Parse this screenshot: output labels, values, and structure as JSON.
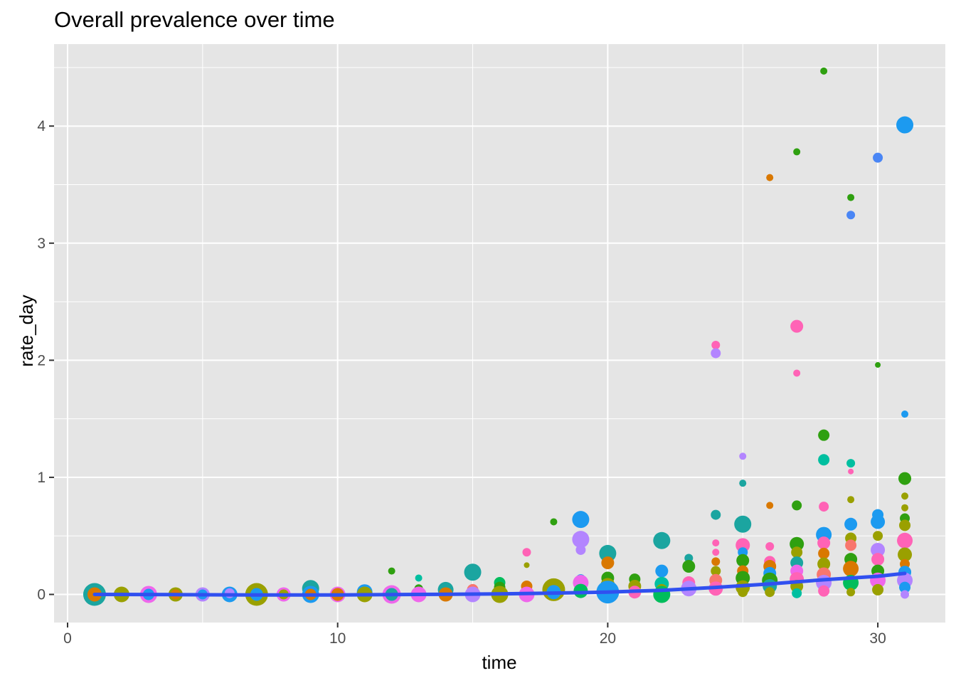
{
  "chart_data": {
    "type": "scatter",
    "title": "Overall prevalence over time",
    "xlabel": "time",
    "ylabel": "rate_day",
    "xlim": [
      -0.5,
      32.5
    ],
    "ylim": [
      -0.24,
      4.7
    ],
    "x_ticks": [
      0,
      10,
      20,
      30
    ],
    "y_ticks": [
      0,
      1,
      2,
      3,
      4
    ],
    "x_tick_labels": [
      "0",
      "10",
      "20",
      "30"
    ],
    "y_tick_labels": [
      "0",
      "1",
      "2",
      "3",
      "4"
    ],
    "grid": true,
    "legend": "none",
    "colors": {
      "panel": "#e5e5e5",
      "grid_major": "#ffffff",
      "trend": "#3050f0"
    },
    "palette": [
      "#F8766D",
      "#DB8E00",
      "#AEA200",
      "#64B200",
      "#00BD5C",
      "#00C1A7",
      "#00BADE",
      "#00A6FF",
      "#B385FF",
      "#EF67EB",
      "#FF63B6",
      "#2fa010",
      "#9aa000",
      "#d97800",
      "#1ba5a0",
      "#1c9af0"
    ],
    "points": [
      {
        "x": 1,
        "y": 0.0,
        "size": 16,
        "color": "#1ba5a0"
      },
      {
        "x": 1,
        "y": 0.0,
        "size": 10,
        "color": "#d97800"
      },
      {
        "x": 2,
        "y": 0.0,
        "size": 11,
        "color": "#9aa000"
      },
      {
        "x": 3,
        "y": 0.0,
        "size": 12,
        "color": "#EF67EB"
      },
      {
        "x": 3,
        "y": 0.0,
        "size": 8,
        "color": "#1c9af0"
      },
      {
        "x": 4,
        "y": 0.0,
        "size": 10,
        "color": "#9aa000"
      },
      {
        "x": 4,
        "y": 0.0,
        "size": 7,
        "color": "#d97800"
      },
      {
        "x": 5,
        "y": 0.0,
        "size": 10,
        "color": "#B385FF"
      },
      {
        "x": 5,
        "y": 0.0,
        "size": 7,
        "color": "#1c9af0"
      },
      {
        "x": 6,
        "y": 0.0,
        "size": 11,
        "color": "#1c9af0"
      },
      {
        "x": 6,
        "y": 0.01,
        "size": 7,
        "color": "#B385FF"
      },
      {
        "x": 7,
        "y": 0.0,
        "size": 16,
        "color": "#9aa000"
      },
      {
        "x": 7,
        "y": 0.0,
        "size": 9,
        "color": "#1c9af0"
      },
      {
        "x": 8,
        "y": 0.0,
        "size": 10,
        "color": "#EF67EB"
      },
      {
        "x": 8,
        "y": 0.0,
        "size": 7,
        "color": "#9aa000"
      },
      {
        "x": 9,
        "y": 0.05,
        "size": 12,
        "color": "#1ba5a0"
      },
      {
        "x": 9,
        "y": 0.0,
        "size": 12,
        "color": "#1c9af0"
      },
      {
        "x": 9,
        "y": 0.0,
        "size": 8,
        "color": "#d97800"
      },
      {
        "x": 10,
        "y": 0.0,
        "size": 11,
        "color": "#EF67EB"
      },
      {
        "x": 10,
        "y": 0.0,
        "size": 9,
        "color": "#d97800"
      },
      {
        "x": 11,
        "y": 0.02,
        "size": 11,
        "color": "#1c9af0"
      },
      {
        "x": 11,
        "y": 0.0,
        "size": 11,
        "color": "#9aa000"
      },
      {
        "x": 12,
        "y": 0.2,
        "size": 5,
        "color": "#2fa010"
      },
      {
        "x": 12,
        "y": 0.0,
        "size": 13,
        "color": "#EF67EB"
      },
      {
        "x": 12,
        "y": 0.0,
        "size": 9,
        "color": "#1ba5a0"
      },
      {
        "x": 13,
        "y": 0.14,
        "size": 5,
        "color": "#00BFA0"
      },
      {
        "x": 13,
        "y": 0.05,
        "size": 6,
        "color": "#2fa010"
      },
      {
        "x": 13,
        "y": 0.0,
        "size": 11,
        "color": "#EF67EB"
      },
      {
        "x": 14,
        "y": 0.04,
        "size": 11,
        "color": "#1ba5a0"
      },
      {
        "x": 14,
        "y": 0.0,
        "size": 10,
        "color": "#d97800"
      },
      {
        "x": 15,
        "y": 0.19,
        "size": 12,
        "color": "#1ba5a0"
      },
      {
        "x": 15,
        "y": 0.04,
        "size": 8,
        "color": "#F8766D"
      },
      {
        "x": 15,
        "y": 0.0,
        "size": 11,
        "color": "#B385FF"
      },
      {
        "x": 16,
        "y": 0.1,
        "size": 8,
        "color": "#00BD5C"
      },
      {
        "x": 16,
        "y": 0.06,
        "size": 8,
        "color": "#2fa010"
      },
      {
        "x": 16,
        "y": 0.0,
        "size": 12,
        "color": "#9aa000"
      },
      {
        "x": 17,
        "y": 0.36,
        "size": 6,
        "color": "#FF63B6"
      },
      {
        "x": 17,
        "y": 0.25,
        "size": 4,
        "color": "#9aa000"
      },
      {
        "x": 17,
        "y": 0.07,
        "size": 8,
        "color": "#d97800"
      },
      {
        "x": 17,
        "y": 0.0,
        "size": 11,
        "color": "#EF67EB"
      },
      {
        "x": 18,
        "y": 0.62,
        "size": 5,
        "color": "#2fa010"
      },
      {
        "x": 18,
        "y": 0.04,
        "size": 16,
        "color": "#9aa000"
      },
      {
        "x": 18,
        "y": 0.02,
        "size": 10,
        "color": "#1c9af0"
      },
      {
        "x": 19,
        "y": 0.64,
        "size": 12,
        "color": "#1c9af0"
      },
      {
        "x": 19,
        "y": 0.47,
        "size": 12,
        "color": "#B385FF"
      },
      {
        "x": 19,
        "y": 0.38,
        "size": 7,
        "color": "#B385FF"
      },
      {
        "x": 19,
        "y": 0.13,
        "size": 7,
        "color": "#1c9af0"
      },
      {
        "x": 19,
        "y": 0.1,
        "size": 11,
        "color": "#EF67EB"
      },
      {
        "x": 19,
        "y": 0.03,
        "size": 10,
        "color": "#00BD5C"
      },
      {
        "x": 20,
        "y": 0.35,
        "size": 12,
        "color": "#1ba5a0"
      },
      {
        "x": 20,
        "y": 0.27,
        "size": 9,
        "color": "#d97800"
      },
      {
        "x": 20,
        "y": 0.14,
        "size": 9,
        "color": "#2fa010"
      },
      {
        "x": 20,
        "y": 0.08,
        "size": 10,
        "color": "#9aa000"
      },
      {
        "x": 20,
        "y": 0.03,
        "size": 11,
        "color": "#EF67EB"
      },
      {
        "x": 20,
        "y": 0.02,
        "size": 16,
        "color": "#1c9af0"
      },
      {
        "x": 21,
        "y": 0.13,
        "size": 8,
        "color": "#2fa010"
      },
      {
        "x": 21,
        "y": 0.07,
        "size": 9,
        "color": "#9aa000"
      },
      {
        "x": 21,
        "y": 0.02,
        "size": 9,
        "color": "#FF63B6"
      },
      {
        "x": 22,
        "y": 0.46,
        "size": 12,
        "color": "#1ba5a0"
      },
      {
        "x": 22,
        "y": 0.2,
        "size": 9,
        "color": "#1c9af0"
      },
      {
        "x": 22,
        "y": 0.09,
        "size": 10,
        "color": "#00BFA0"
      },
      {
        "x": 22,
        "y": 0.04,
        "size": 8,
        "color": "#9aa000"
      },
      {
        "x": 22,
        "y": 0.0,
        "size": 12,
        "color": "#00BD5C"
      },
      {
        "x": 23,
        "y": 0.31,
        "size": 6,
        "color": "#1ba5a0"
      },
      {
        "x": 23,
        "y": 0.24,
        "size": 9,
        "color": "#2fa010"
      },
      {
        "x": 23,
        "y": 0.1,
        "size": 9,
        "color": "#FF63B6"
      },
      {
        "x": 23,
        "y": 0.05,
        "size": 11,
        "color": "#B385FF"
      },
      {
        "x": 24,
        "y": 2.13,
        "size": 6,
        "color": "#FF63B6"
      },
      {
        "x": 24,
        "y": 2.06,
        "size": 7,
        "color": "#B385FF"
      },
      {
        "x": 24,
        "y": 0.68,
        "size": 7,
        "color": "#1ba5a0"
      },
      {
        "x": 24,
        "y": 0.44,
        "size": 5,
        "color": "#FF63B6"
      },
      {
        "x": 24,
        "y": 0.36,
        "size": 5,
        "color": "#FF63B6"
      },
      {
        "x": 24,
        "y": 0.28,
        "size": 6,
        "color": "#d97800"
      },
      {
        "x": 24,
        "y": 0.2,
        "size": 7,
        "color": "#9aa000"
      },
      {
        "x": 24,
        "y": 0.12,
        "size": 9,
        "color": "#F8766D"
      },
      {
        "x": 24,
        "y": 0.05,
        "size": 10,
        "color": "#FF63B6"
      },
      {
        "x": 25,
        "y": 1.18,
        "size": 5,
        "color": "#B385FF"
      },
      {
        "x": 25,
        "y": 0.95,
        "size": 5,
        "color": "#1ba5a0"
      },
      {
        "x": 25,
        "y": 0.6,
        "size": 12,
        "color": "#1ba5a0"
      },
      {
        "x": 25,
        "y": 0.42,
        "size": 10,
        "color": "#FF63B6"
      },
      {
        "x": 25,
        "y": 0.36,
        "size": 7,
        "color": "#1c9af0"
      },
      {
        "x": 25,
        "y": 0.29,
        "size": 9,
        "color": "#2fa010"
      },
      {
        "x": 25,
        "y": 0.2,
        "size": 8,
        "color": "#d97800"
      },
      {
        "x": 25,
        "y": 0.14,
        "size": 10,
        "color": "#2fa010"
      },
      {
        "x": 25,
        "y": 0.06,
        "size": 10,
        "color": "#9aa000"
      },
      {
        "x": 25,
        "y": 0.02,
        "size": 7,
        "color": "#9aa000"
      },
      {
        "x": 26,
        "y": 3.56,
        "size": 5,
        "color": "#d97800"
      },
      {
        "x": 26,
        "y": 0.76,
        "size": 5,
        "color": "#d97800"
      },
      {
        "x": 26,
        "y": 0.41,
        "size": 6,
        "color": "#FF63B6"
      },
      {
        "x": 26,
        "y": 0.28,
        "size": 8,
        "color": "#FF63B6"
      },
      {
        "x": 26,
        "y": 0.24,
        "size": 9,
        "color": "#d97800"
      },
      {
        "x": 26,
        "y": 0.18,
        "size": 9,
        "color": "#1c9af0"
      },
      {
        "x": 26,
        "y": 0.12,
        "size": 11,
        "color": "#2fa010"
      },
      {
        "x": 26,
        "y": 0.07,
        "size": 10,
        "color": "#1ba5a0"
      },
      {
        "x": 26,
        "y": 0.02,
        "size": 7,
        "color": "#9aa000"
      },
      {
        "x": 27,
        "y": 3.78,
        "size": 5,
        "color": "#2fa010"
      },
      {
        "x": 27,
        "y": 2.29,
        "size": 9,
        "color": "#FF63B6"
      },
      {
        "x": 27,
        "y": 1.89,
        "size": 5,
        "color": "#FF63B6"
      },
      {
        "x": 27,
        "y": 0.76,
        "size": 7,
        "color": "#2fa010"
      },
      {
        "x": 27,
        "y": 0.43,
        "size": 10,
        "color": "#2fa010"
      },
      {
        "x": 27,
        "y": 0.36,
        "size": 8,
        "color": "#9aa000"
      },
      {
        "x": 27,
        "y": 0.27,
        "size": 9,
        "color": "#1ba5a0"
      },
      {
        "x": 27,
        "y": 0.2,
        "size": 9,
        "color": "#EF67EB"
      },
      {
        "x": 27,
        "y": 0.13,
        "size": 10,
        "color": "#FF63B6"
      },
      {
        "x": 27,
        "y": 0.07,
        "size": 9,
        "color": "#9aa000"
      },
      {
        "x": 27,
        "y": 0.01,
        "size": 7,
        "color": "#00BFA0"
      },
      {
        "x": 28,
        "y": 4.47,
        "size": 5,
        "color": "#2fa010"
      },
      {
        "x": 28,
        "y": 1.36,
        "size": 8,
        "color": "#2fa010"
      },
      {
        "x": 28,
        "y": 1.15,
        "size": 8,
        "color": "#00BFA0"
      },
      {
        "x": 28,
        "y": 0.75,
        "size": 7,
        "color": "#FF63B6"
      },
      {
        "x": 28,
        "y": 0.51,
        "size": 11,
        "color": "#1c9af0"
      },
      {
        "x": 28,
        "y": 0.44,
        "size": 9,
        "color": "#FF63B6"
      },
      {
        "x": 28,
        "y": 0.35,
        "size": 8,
        "color": "#d97800"
      },
      {
        "x": 28,
        "y": 0.26,
        "size": 9,
        "color": "#9aa000"
      },
      {
        "x": 28,
        "y": 0.17,
        "size": 10,
        "color": "#F8766D"
      },
      {
        "x": 28,
        "y": 0.1,
        "size": 11,
        "color": "#B385FF"
      },
      {
        "x": 28,
        "y": 0.03,
        "size": 8,
        "color": "#FF63B6"
      },
      {
        "x": 29,
        "y": 3.39,
        "size": 5,
        "color": "#2fa010"
      },
      {
        "x": 29,
        "y": 3.24,
        "size": 6,
        "color": "#4a86f5"
      },
      {
        "x": 29,
        "y": 1.12,
        "size": 6,
        "color": "#00BFA0"
      },
      {
        "x": 29,
        "y": 1.05,
        "size": 4,
        "color": "#FF63B6"
      },
      {
        "x": 29,
        "y": 0.81,
        "size": 5,
        "color": "#9aa000"
      },
      {
        "x": 29,
        "y": 0.6,
        "size": 9,
        "color": "#1c9af0"
      },
      {
        "x": 29,
        "y": 0.48,
        "size": 8,
        "color": "#9aa000"
      },
      {
        "x": 29,
        "y": 0.42,
        "size": 8,
        "color": "#F8766D"
      },
      {
        "x": 29,
        "y": 0.3,
        "size": 9,
        "color": "#2fa010"
      },
      {
        "x": 29,
        "y": 0.22,
        "size": 11,
        "color": "#d97800"
      },
      {
        "x": 29,
        "y": 0.1,
        "size": 11,
        "color": "#00BD5C"
      },
      {
        "x": 29,
        "y": 0.02,
        "size": 6,
        "color": "#9aa000"
      },
      {
        "x": 30,
        "y": 3.73,
        "size": 7,
        "color": "#4a86f5"
      },
      {
        "x": 30,
        "y": 1.96,
        "size": 4,
        "color": "#2fa010"
      },
      {
        "x": 30,
        "y": 0.68,
        "size": 8,
        "color": "#1c9af0"
      },
      {
        "x": 30,
        "y": 0.62,
        "size": 10,
        "color": "#1c9af0"
      },
      {
        "x": 30,
        "y": 0.5,
        "size": 7,
        "color": "#9aa000"
      },
      {
        "x": 30,
        "y": 0.38,
        "size": 10,
        "color": "#B385FF"
      },
      {
        "x": 30,
        "y": 0.3,
        "size": 9,
        "color": "#FF63B6"
      },
      {
        "x": 30,
        "y": 0.2,
        "size": 9,
        "color": "#2fa010"
      },
      {
        "x": 30,
        "y": 0.12,
        "size": 11,
        "color": "#EF67EB"
      },
      {
        "x": 30,
        "y": 0.04,
        "size": 8,
        "color": "#9aa000"
      },
      {
        "x": 31,
        "y": 4.01,
        "size": 12,
        "color": "#1c9af0"
      },
      {
        "x": 31,
        "y": 1.54,
        "size": 5,
        "color": "#1c9af0"
      },
      {
        "x": 31,
        "y": 0.99,
        "size": 9,
        "color": "#2fa010"
      },
      {
        "x": 31,
        "y": 0.84,
        "size": 5,
        "color": "#9aa000"
      },
      {
        "x": 31,
        "y": 0.74,
        "size": 5,
        "color": "#9aa000"
      },
      {
        "x": 31,
        "y": 0.65,
        "size": 7,
        "color": "#2fa010"
      },
      {
        "x": 31,
        "y": 0.59,
        "size": 8,
        "color": "#9aa000"
      },
      {
        "x": 31,
        "y": 0.46,
        "size": 11,
        "color": "#FF63B6"
      },
      {
        "x": 31,
        "y": 0.34,
        "size": 10,
        "color": "#9aa000"
      },
      {
        "x": 31,
        "y": 0.26,
        "size": 7,
        "color": "#d97800"
      },
      {
        "x": 31,
        "y": 0.19,
        "size": 9,
        "color": "#1c9af0"
      },
      {
        "x": 31,
        "y": 0.12,
        "size": 11,
        "color": "#B385FF"
      },
      {
        "x": 31,
        "y": 0.06,
        "size": 8,
        "color": "#1c9af0"
      },
      {
        "x": 31,
        "y": 0.0,
        "size": 6,
        "color": "#B385FF"
      }
    ],
    "trend": {
      "name": "",
      "x": [
        1,
        4,
        7,
        10,
        13,
        16,
        19,
        20,
        22,
        24,
        26,
        28,
        30,
        31
      ],
      "y": [
        0.0,
        -0.002,
        -0.004,
        -0.004,
        0.0,
        0.004,
        0.015,
        0.02,
        0.035,
        0.06,
        0.09,
        0.125,
        0.155,
        0.18
      ]
    }
  }
}
